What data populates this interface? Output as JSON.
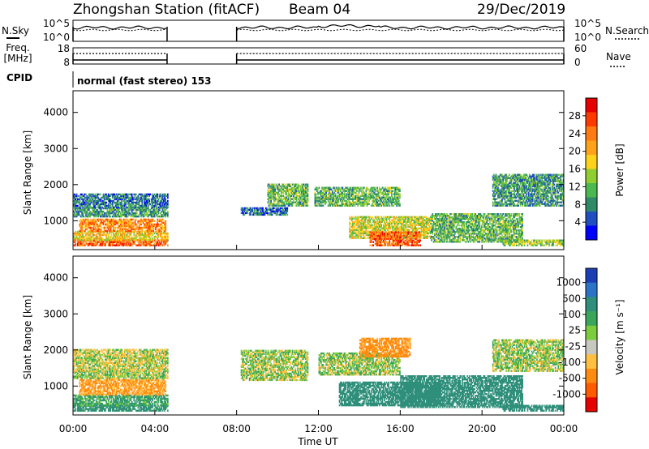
{
  "header": {
    "station": "Zhongshan Station (fitACF)",
    "beam": "Beam 04",
    "date": "29/Dec/2019"
  },
  "top_labels": {
    "nsky": "N.Sky",
    "nsearch": "N.Search",
    "freq_line1": "Freq.",
    "freq_line2": "[MHz]",
    "nave": "Nave",
    "cpid": "CPID",
    "cpid_text": "normal (fast stereo) 153",
    "noise_ticks": [
      "10^5",
      "10^0"
    ],
    "freq_ticks": [
      "18",
      "8"
    ],
    "nave_ticks": [
      "60",
      "0"
    ]
  },
  "x_axis": {
    "label": "Time UT",
    "ticks": [
      "00:00",
      "04:00",
      "08:00",
      "12:00",
      "16:00",
      "20:00",
      "00:00"
    ]
  },
  "colorbars": {
    "power": {
      "label": "Power [dB]",
      "ticks": [
        "28",
        "24",
        "20",
        "16",
        "12",
        "8",
        "4"
      ],
      "colors": [
        "#0000ff",
        "#1f4fc0",
        "#2f8a6a",
        "#4cb850",
        "#8fce30",
        "#ffd21a",
        "#ffa21a",
        "#ff7a10",
        "#ff3a00",
        "#e60000"
      ]
    },
    "velocity": {
      "label": "Velocity [m s⁻¹]",
      "ticks": [
        "1000",
        "500",
        "100",
        "25",
        "-25",
        "-100",
        "-500",
        "-1000"
      ],
      "colors": [
        "#1a3fb5",
        "#2b73c7",
        "#2f8f7a",
        "#3aa65a",
        "#7ccd3e",
        "#c8c8c0",
        "#ffbf40",
        "#ff8a10",
        "#ff5a00",
        "#e60000"
      ]
    }
  },
  "chart_data": [
    {
      "type": "heatmap",
      "title": "",
      "xlabel": "Time UT",
      "ylabel": "Slant Range [km]",
      "x_range_hours": [
        0,
        24
      ],
      "ylim": [
        200,
        4600
      ],
      "yticks": [
        1000,
        2000,
        3000,
        4000
      ],
      "colorbar": "Power [dB]",
      "data_gap_hours": [
        4.6,
        8.0
      ],
      "regions": [
        {
          "t": [
            0.0,
            4.6
          ],
          "r": [
            300,
            450
          ],
          "value": 24
        },
        {
          "t": [
            0.0,
            4.6
          ],
          "r": [
            450,
            700
          ],
          "value": 18
        },
        {
          "t": [
            0.3,
            4.5
          ],
          "r": [
            700,
            1050
          ],
          "value": 22
        },
        {
          "t": [
            0.0,
            4.6
          ],
          "r": [
            1100,
            1350
          ],
          "value": 10
        },
        {
          "t": [
            0.0,
            4.6
          ],
          "r": [
            1350,
            1750
          ],
          "value": 8
        },
        {
          "t": [
            8.2,
            10.5
          ],
          "r": [
            1150,
            1350
          ],
          "value": 8
        },
        {
          "t": [
            9.5,
            11.5
          ],
          "r": [
            1400,
            2000
          ],
          "value": 12
        },
        {
          "t": [
            11.8,
            16.0
          ],
          "r": [
            1400,
            1900
          ],
          "value": 12
        },
        {
          "t": [
            13.5,
            17.5
          ],
          "r": [
            500,
            1100
          ],
          "value": 16
        },
        {
          "t": [
            14.5,
            17.0
          ],
          "r": [
            300,
            700
          ],
          "value": 24
        },
        {
          "t": [
            17.5,
            22.0
          ],
          "r": [
            400,
            1200
          ],
          "value": 12
        },
        {
          "t": [
            21.0,
            24.0
          ],
          "r": [
            300,
            450
          ],
          "value": 14
        },
        {
          "t": [
            20.5,
            24.0
          ],
          "r": [
            1400,
            2300
          ],
          "value": 10
        }
      ]
    },
    {
      "type": "heatmap",
      "title": "",
      "xlabel": "Time UT",
      "ylabel": "Slant Range [km]",
      "x_range_hours": [
        0,
        24
      ],
      "ylim": [
        200,
        4600
      ],
      "yticks": [
        1000,
        2000,
        3000,
        4000
      ],
      "colorbar": "Velocity [m s⁻¹]",
      "data_gap_hours": [
        4.6,
        8.0
      ],
      "regions": [
        {
          "t": [
            0.0,
            4.6
          ],
          "r": [
            300,
            450
          ],
          "value": 150
        },
        {
          "t": [
            0.0,
            4.6
          ],
          "r": [
            450,
            750
          ],
          "value": 80
        },
        {
          "t": [
            0.3,
            4.5
          ],
          "r": [
            750,
            1200
          ],
          "value": -120
        },
        {
          "t": [
            0.0,
            4.6
          ],
          "r": [
            1200,
            1400
          ],
          "value": 0
        },
        {
          "t": [
            0.0,
            4.6
          ],
          "r": [
            1400,
            2000
          ],
          "value": -20
        },
        {
          "t": [
            8.2,
            11.5
          ],
          "r": [
            1150,
            2000
          ],
          "value": 0
        },
        {
          "t": [
            12.0,
            16.0
          ],
          "r": [
            1300,
            1900
          ],
          "value": 0
        },
        {
          "t": [
            14.0,
            16.5
          ],
          "r": [
            1800,
            2300
          ],
          "value": -150
        },
        {
          "t": [
            13.0,
            18.0
          ],
          "r": [
            450,
            1100
          ],
          "value": 300
        },
        {
          "t": [
            16.0,
            22.0
          ],
          "r": [
            400,
            1300
          ],
          "value": 400
        },
        {
          "t": [
            20.5,
            24.0
          ],
          "r": [
            1400,
            2300
          ],
          "value": 0
        },
        {
          "t": [
            21.0,
            24.0
          ],
          "r": [
            300,
            450
          ],
          "value": 200
        }
      ]
    }
  ]
}
